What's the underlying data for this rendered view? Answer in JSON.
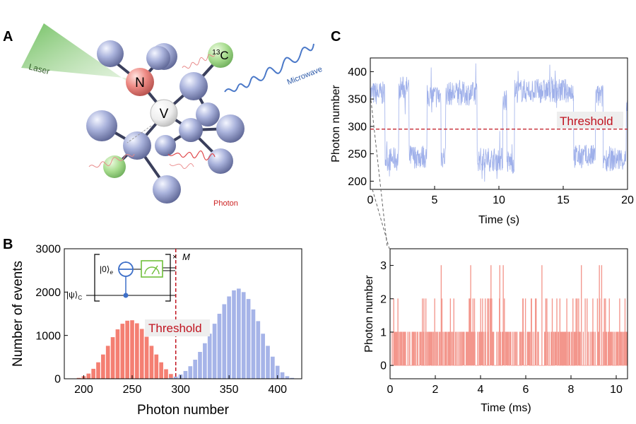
{
  "panels": {
    "a": {
      "letter": "A",
      "atom_n": "N",
      "atom_v": "V",
      "atom_c13_sup": "13",
      "atom_c13": "C",
      "laser": "Laser",
      "microwave": "Microwave",
      "photon": "Photon"
    },
    "b": {
      "letter": "B"
    },
    "c": {
      "letter": "C"
    }
  },
  "circuit": {
    "ket0": "|0⟩",
    "ket0_sub": "e",
    "ketpsi": "|ψ⟩",
    "ketpsi_sub": "C",
    "repeat": "×",
    "repeat_label": "M"
  },
  "colors": {
    "red_bars": "#f47f72",
    "blue_bars": "#a6b4e8",
    "threshold": "#c0131f",
    "trace_blue": "#9fb0ea",
    "trace_red": "#f3968c"
  },
  "chart_data": [
    {
      "id": "histogram",
      "type": "bar",
      "xlabel": "Photon number",
      "ylabel": "Number of events",
      "xlim": [
        180,
        425
      ],
      "ylim": [
        0,
        3000
      ],
      "xticks": [
        200,
        250,
        300,
        350,
        400
      ],
      "yticks": [
        0,
        1000,
        2000,
        3000
      ],
      "threshold": {
        "x": 295,
        "label": "Threshold"
      },
      "bin_width": 5,
      "series": [
        {
          "color": "red",
          "x": [
            195,
            200,
            205,
            210,
            215,
            220,
            225,
            230,
            235,
            240,
            245,
            250,
            255,
            260,
            265,
            270,
            275,
            280,
            285,
            290,
            295
          ],
          "values": [
            20,
            60,
            120,
            230,
            380,
            560,
            760,
            960,
            1140,
            1270,
            1340,
            1350,
            1280,
            1150,
            970,
            760,
            560,
            380,
            220,
            110,
            40
          ]
        },
        {
          "color": "blue",
          "x": [
            290,
            295,
            300,
            305,
            310,
            315,
            320,
            325,
            330,
            335,
            340,
            345,
            350,
            355,
            360,
            365,
            370,
            375,
            380,
            385,
            390,
            395,
            400,
            405,
            410,
            415
          ],
          "values": [
            20,
            50,
            100,
            180,
            290,
            440,
            620,
            820,
            1040,
            1270,
            1500,
            1720,
            1900,
            2040,
            2080,
            2000,
            1840,
            1600,
            1330,
            1040,
            760,
            510,
            300,
            150,
            60,
            20
          ]
        }
      ]
    },
    {
      "id": "trace_seconds",
      "type": "line",
      "xlabel": "Time (s)",
      "ylabel": "Photon number",
      "xlim": [
        0,
        20
      ],
      "ylim": [
        185,
        425
      ],
      "xticks": [
        0,
        5,
        10,
        15,
        20
      ],
      "yticks": [
        200,
        250,
        300,
        350,
        400
      ],
      "threshold": {
        "y": 295,
        "label": "Threshold"
      },
      "state_segments": [
        {
          "t_start": 0,
          "t_end": 1.15,
          "level": 360
        },
        {
          "t_start": 1.15,
          "t_end": 2.2,
          "level": 240
        },
        {
          "t_start": 2.2,
          "t_end": 3.0,
          "level": 370
        },
        {
          "t_start": 3.0,
          "t_end": 4.4,
          "level": 245
        },
        {
          "t_start": 4.4,
          "t_end": 5.5,
          "level": 355
        },
        {
          "t_start": 5.5,
          "t_end": 5.85,
          "level": 245
        },
        {
          "t_start": 5.85,
          "t_end": 8.3,
          "level": 360
        },
        {
          "t_start": 8.3,
          "t_end": 10.3,
          "level": 240
        },
        {
          "t_start": 10.3,
          "t_end": 10.6,
          "level": 350
        },
        {
          "t_start": 10.6,
          "t_end": 11.2,
          "level": 235
        },
        {
          "t_start": 11.2,
          "t_end": 15.8,
          "level": 365
        },
        {
          "t_start": 15.8,
          "t_end": 17.5,
          "level": 245
        },
        {
          "t_start": 17.5,
          "t_end": 18.1,
          "level": 355
        },
        {
          "t_start": 18.1,
          "t_end": 19.9,
          "level": 240
        },
        {
          "t_start": 19.9,
          "t_end": 20,
          "level": 330
        }
      ]
    },
    {
      "id": "trace_milliseconds",
      "type": "line",
      "xlabel": "Time (ms)",
      "ylabel": "Photon number",
      "xlim": [
        0,
        10.5
      ],
      "ylim": [
        -0.4,
        3.5
      ],
      "xticks": [
        0,
        2,
        4,
        6,
        8,
        10
      ],
      "yticks": [
        0,
        1,
        2,
        3
      ],
      "spikes_3": [
        2.25,
        3.55,
        4.45,
        4.85,
        5.0,
        6.7,
        8.45,
        9.25,
        9.35
      ]
    }
  ]
}
